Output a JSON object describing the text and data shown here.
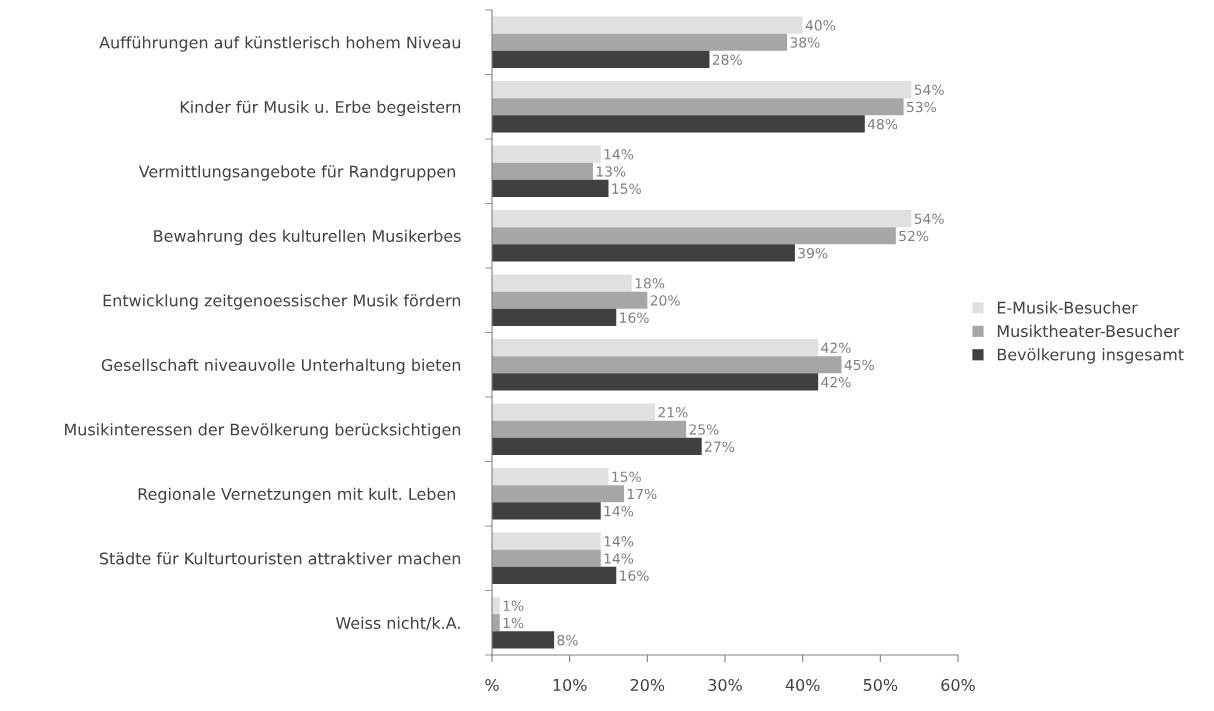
{
  "chart_data": {
    "type": "bar",
    "orientation": "horizontal",
    "categories": [
      "Aufführungen auf künstlerisch hohem Niveau",
      "Kinder für Musik u. Erbe begeistern",
      "Vermittlungsangebote für Randgruppen ",
      "Bewahrung des kulturellen Musikerbes",
      "Entwicklung zeitgenoessischer Musik fördern",
      "Gesellschaft niveauvolle Unterhaltung bieten",
      "Musikinteressen der Bevölkerung berücksichtigen",
      "Regionale Vernetzungen mit kult. Leben ",
      "Städte für Kulturtouristen attraktiver machen",
      "Weiss nicht/k.A."
    ],
    "series": [
      {
        "name": "E-Musik-Besucher",
        "color": "#e0e0e0",
        "values": [
          40,
          54,
          14,
          54,
          18,
          42,
          21,
          15,
          14,
          1
        ],
        "value_labels": [
          "40%",
          "54%",
          "14%",
          "54%",
          "18%",
          "42%",
          "21%",
          "15%",
          "14%",
          "1%"
        ]
      },
      {
        "name": "Musiktheater-Besucher",
        "color": "#a6a6a6",
        "values": [
          38,
          53,
          13,
          52,
          20,
          45,
          25,
          17,
          14,
          1
        ],
        "value_labels": [
          "38%",
          "53%",
          "13%",
          "52%",
          "20%",
          "45%",
          "25%",
          "17%",
          "14%",
          "1%"
        ]
      },
      {
        "name": "Bevölkerung insgesamt",
        "color": "#404040",
        "values": [
          28,
          48,
          15,
          39,
          16,
          42,
          27,
          14,
          16,
          8
        ],
        "value_labels": [
          "28%",
          "48%",
          "15%",
          "39%",
          "16%",
          "42%",
          "27%",
          "14%",
          "16%",
          "8%"
        ]
      }
    ],
    "xlim": [
      0,
      60
    ],
    "xticks": [
      {
        "value": 0,
        "label": "%"
      },
      {
        "value": 10,
        "label": "10%"
      },
      {
        "value": 20,
        "label": "20%"
      },
      {
        "value": 30,
        "label": "30%"
      },
      {
        "value": 40,
        "label": "40%"
      },
      {
        "value": 50,
        "label": "50%"
      },
      {
        "value": 60,
        "label": "60%"
      }
    ],
    "grid": false,
    "legend": "right"
  }
}
